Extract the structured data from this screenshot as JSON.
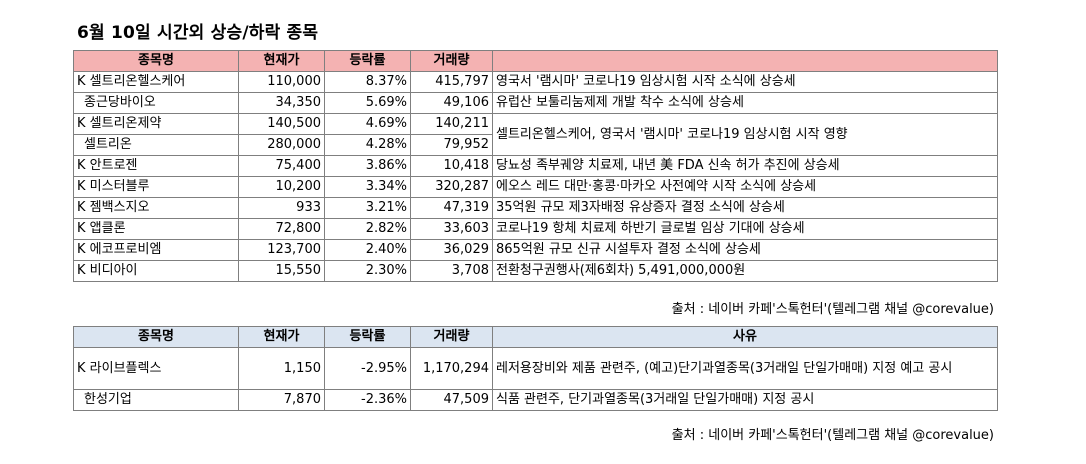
{
  "title": "6월 10일   시간외 상승/하락 종목",
  "rise_table": {
    "headers": [
      "종목명",
      "현재가",
      "등락률",
      "거래량",
      ""
    ],
    "rows": [
      {
        "name": "K 셀트리온헬스케어",
        "price": "110,000",
        "rate": "8.37%",
        "volume": "415,797",
        "reason": "영국서 '램시마' 코로나19 임상시험 시작 소식에 상승세"
      },
      {
        "name": "종근당바이오",
        "price": "34,350",
        "rate": "5.69%",
        "volume": "49,106",
        "reason": "유럽산 보툴리눔제제 개발 착수 소식에 상승세"
      },
      {
        "name": "K 셀트리온제약",
        "price": "140,500",
        "rate": "4.69%",
        "volume": "140,211",
        "reason": "셀트리온헬스케어, 영국서 '램시마' 코로나19 임상시험 시작 영향"
      },
      {
        "name": "셀트리온",
        "price": "280,000",
        "rate": "4.28%",
        "volume": "79,952",
        "reason": ""
      },
      {
        "name": "K 안트로젠",
        "price": "75,400",
        "rate": "3.86%",
        "volume": "10,418",
        "reason": "당뇨성 족부궤양 치료제, 내년 美 FDA 신속 허가 추진에 상승세"
      },
      {
        "name": "K 미스터블루",
        "price": "10,200",
        "rate": "3.34%",
        "volume": "320,287",
        "reason": "에오스 레드 대만·홍콩·마카오 사전예약 시작 소식에 상승세"
      },
      {
        "name": "K 젬백스지오",
        "price": "933",
        "rate": "3.21%",
        "volume": "47,319",
        "reason": "35억원 규모 제3자배정 유상증자 결정 소식에 상승세"
      },
      {
        "name": "K 앱클론",
        "price": "72,800",
        "rate": "2.82%",
        "volume": "33,603",
        "reason": "코로나19 항체 치료제 하반기 글로벌 임상 기대에 상승세"
      },
      {
        "name": "K 에코프로비엠",
        "price": "123,700",
        "rate": "2.40%",
        "volume": "36,029",
        "reason": "865억원 규모 신규 시설투자 결정 소식에 상승세"
      },
      {
        "name": "K 비디아이",
        "price": "15,550",
        "rate": "2.30%",
        "volume": "3,708",
        "reason": "전환청구권행사(제6회차) 5,491,000,000원"
      }
    ],
    "source": "출처 : 네이버 카페'스톡헌터'(텔레그램 채널 @corevalue)"
  },
  "fall_table": {
    "headers": [
      "종목명",
      "현재가",
      "등락률",
      "거래량",
      "사유"
    ],
    "rows": [
      {
        "name": "K 라이브플렉스",
        "price": "1,150",
        "rate": "-2.95%",
        "volume": "1,170,294",
        "reason": "레저용장비와 제품 관련주, (예고)단기과열종목(3거래일 단일가매매) 지정 예고 공시"
      },
      {
        "name": "한성기업",
        "price": "7,870",
        "rate": "-2.36%",
        "volume": "47,509",
        "reason": "식품 관련주, 단기과열종목(3거래일 단일가매매) 지정 공시"
      }
    ],
    "source": "출처 : 네이버 카페'스톡헌터'(텔레그램 채널 @corevalue)"
  }
}
